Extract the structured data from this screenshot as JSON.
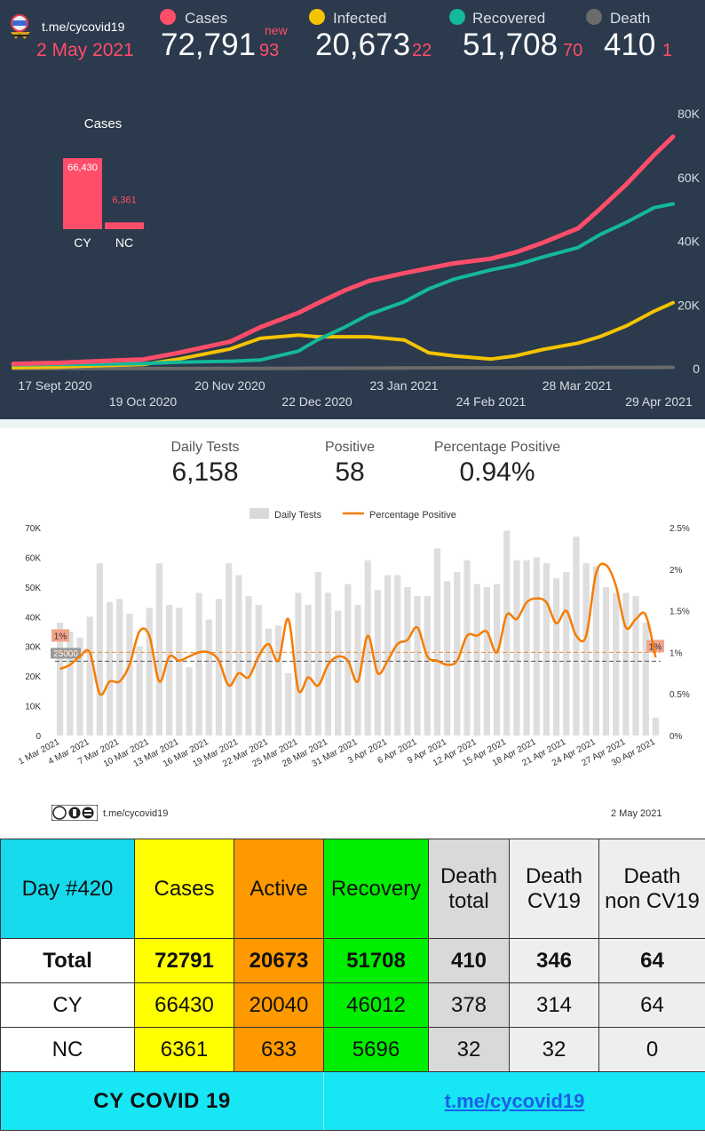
{
  "header": {
    "channel": "t.me/cycovid19",
    "date": "2 May 2021",
    "new_label": "new",
    "stats": [
      {
        "label": "Cases",
        "value": "72,791",
        "new": "93",
        "color": "#ff4d6a"
      },
      {
        "label": "Infected",
        "value": "20,673",
        "new": "22",
        "color": "#f5c400"
      },
      {
        "label": "Recovered",
        "value": "51,708",
        "new": "70",
        "color": "#14b89a"
      },
      {
        "label": "Death",
        "value": "410",
        "new": "1",
        "color": "#6b6b6b"
      }
    ]
  },
  "chart_data": [
    {
      "type": "line",
      "x_tick_labels": [
        "17 Sept 2020",
        "19 Oct 2020",
        "20 Nov 2020",
        "22 Dec 2020",
        "23 Jan 2021",
        "24 Feb 2021",
        "28 Mar 2021",
        "29 Apr 2021"
      ],
      "y_tick_labels": [
        "0",
        "20K",
        "40K",
        "60K",
        "80K"
      ],
      "ylim": [
        0,
        80000
      ],
      "x_dates": [
        "2020-09-01",
        "2020-09-17",
        "2020-10-01",
        "2020-10-19",
        "2020-11-01",
        "2020-11-20",
        "2020-12-01",
        "2020-12-15",
        "2020-12-22",
        "2021-01-01",
        "2021-01-10",
        "2021-01-23",
        "2021-02-01",
        "2021-02-10",
        "2021-02-24",
        "2021-03-05",
        "2021-03-15",
        "2021-03-28",
        "2021-04-05",
        "2021-04-15",
        "2021-04-25",
        "2021-05-02"
      ],
      "series": [
        {
          "name": "Cases",
          "color": "#ff4d6a",
          "values": [
            1500,
            1800,
            2300,
            2900,
            5000,
            8500,
            13000,
            17500,
            20500,
            24500,
            27500,
            30000,
            31500,
            33000,
            34500,
            36500,
            39500,
            44000,
            50000,
            58000,
            67000,
            72791
          ]
        },
        {
          "name": "Recovered",
          "color": "#14b89a",
          "values": [
            1200,
            1300,
            1400,
            1600,
            2000,
            2300,
            2700,
            5500,
            9000,
            13000,
            17000,
            21000,
            25000,
            28000,
            31000,
            32500,
            35000,
            38000,
            42000,
            46000,
            50500,
            51708
          ]
        },
        {
          "name": "Infected",
          "color": "#f5c400",
          "values": [
            300,
            500,
            900,
            1300,
            3000,
            6200,
            9500,
            10500,
            10000,
            10000,
            10000,
            9000,
            5000,
            4000,
            3000,
            4000,
            6000,
            8000,
            10000,
            13500,
            18000,
            20673
          ]
        },
        {
          "name": "Death",
          "color": "#6b6b6b",
          "values": [
            20,
            22,
            25,
            30,
            40,
            60,
            80,
            110,
            130,
            150,
            170,
            200,
            220,
            240,
            250,
            255,
            270,
            300,
            330,
            360,
            390,
            410
          ]
        }
      ]
    },
    {
      "type": "bar",
      "title": "Cases",
      "categories": [
        "CY",
        "NC"
      ],
      "values": [
        66430,
        6361
      ],
      "data_labels": [
        "66,430",
        "6,361"
      ],
      "color": "#ff4d6a"
    },
    {
      "type": "bar+line",
      "legend": [
        "Daily Tests",
        "Percentage Positive"
      ],
      "x_tick_labels": [
        "1 Mar 2021",
        "4 Mar 2021",
        "7 Mar 2021",
        "10 Mar 2021",
        "13 Mar 2021",
        "16 Mar 2021",
        "19 Mar 2021",
        "22 Mar 2021",
        "25 Mar 2021",
        "28 Mar 2021",
        "31 Mar 2021",
        "3 Apr 2021",
        "6 Apr 2021",
        "9 Apr 2021",
        "12 Apr 2021",
        "15 Apr 2021",
        "18 Apr 2021",
        "21 Apr 2021",
        "24 Apr 2021",
        "27 Apr 2021",
        "30 Apr 2021"
      ],
      "y_left_tick_labels": [
        "0",
        "10K",
        "20K",
        "30K",
        "40K",
        "50K",
        "60K",
        "70K"
      ],
      "y_right_tick_labels": [
        "0%",
        "0.5%",
        "1%",
        "1.5%",
        "2%",
        "2.5%"
      ],
      "ylim_left": [
        0,
        70000
      ],
      "ylim_right": [
        0,
        2.5
      ],
      "reference_line_tests": 25000,
      "reference_line_tests_label": "25000",
      "reference_line_percent": 1,
      "reference_line_percent_label": "1%",
      "daily_tests": [
        38000,
        35000,
        33000,
        40000,
        58000,
        45000,
        46000,
        41000,
        30000,
        43000,
        58000,
        44000,
        43000,
        23000,
        48000,
        39000,
        46000,
        58000,
        54000,
        47000,
        44000,
        36000,
        37000,
        21000,
        48000,
        44000,
        55000,
        48000,
        42000,
        51000,
        44000,
        59000,
        49000,
        54000,
        54000,
        50000,
        47000,
        47000,
        63000,
        52000,
        55000,
        59000,
        51000,
        50000,
        51000,
        69000,
        59000,
        59000,
        60000,
        58000,
        53000,
        55000,
        67000,
        58000,
        57000,
        50000,
        48000,
        48000,
        47000,
        38000,
        6000
      ],
      "percent_positive": [
        0.8,
        0.85,
        0.95,
        1.0,
        0.5,
        0.65,
        0.65,
        0.85,
        1.25,
        1.2,
        0.65,
        0.95,
        0.9,
        0.95,
        1.0,
        1.0,
        0.9,
        0.6,
        0.75,
        0.7,
        0.95,
        1.1,
        0.9,
        1.4,
        0.55,
        0.7,
        0.6,
        0.85,
        0.95,
        0.9,
        0.65,
        1.2,
        0.75,
        0.9,
        1.1,
        1.15,
        1.3,
        0.95,
        0.9,
        0.85,
        0.9,
        1.2,
        1.2,
        1.25,
        1.0,
        1.45,
        1.4,
        1.6,
        1.65,
        1.6,
        1.35,
        1.5,
        1.2,
        1.2,
        1.95,
        2.05,
        1.8,
        1.3,
        1.4,
        1.45,
        0.94
      ]
    }
  ],
  "daily": {
    "tests_label": "Daily Tests",
    "tests_value": "6,158",
    "positive_label": "Positive",
    "positive_value": "58",
    "pct_label": "Percentage Positive",
    "pct_value": "0.94%"
  },
  "chart2_footer": {
    "channel": "t.me/cycovid19",
    "date": "2 May 2021"
  },
  "table": {
    "day_label": "Day  #420",
    "col_cases": "Cases",
    "col_active": "Active",
    "col_recovery": "Recovery",
    "col_death_total": [
      "Death",
      "total"
    ],
    "col_death_cv19": [
      "Death",
      "CV19"
    ],
    "col_death_non": [
      "Death",
      "non CV19"
    ],
    "rows": [
      {
        "label": "Total",
        "cases": "72791",
        "active": "20673",
        "recovery": "51708",
        "death_total": "410",
        "death_cv19": "346",
        "death_non": "64"
      },
      {
        "label": "CY",
        "cases": "66430",
        "active": "20040",
        "recovery": "46012",
        "death_total": "378",
        "death_cv19": "314",
        "death_non": "64"
      },
      {
        "label": "NC",
        "cases": "6361",
        "active": "633",
        "recovery": "5696",
        "death_total": "32",
        "death_cv19": "32",
        "death_non": "0"
      }
    ],
    "footer_title": "CY COVID 19",
    "footer_link": "t.me/cycovid19"
  }
}
